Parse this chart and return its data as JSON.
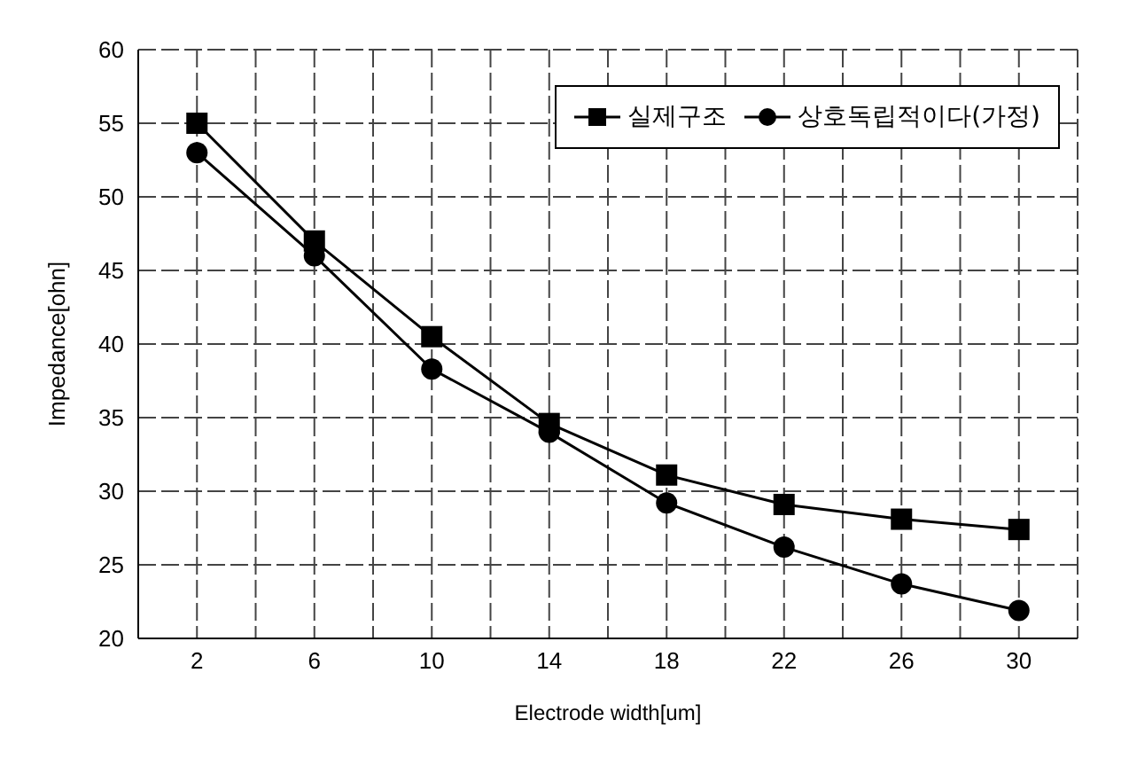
{
  "chart_data": {
    "type": "line",
    "xlabel": "Electrode width[um]",
    "ylabel": "Impedance[ohn]",
    "x": [
      2,
      6,
      10,
      14,
      18,
      22,
      26,
      30
    ],
    "series": [
      {
        "name": "실제구조",
        "color": "#000000",
        "marker": "square",
        "values": [
          55,
          47,
          40.5,
          34.6,
          31.1,
          29.1,
          28.1,
          27.4
        ]
      },
      {
        "name": "상호독립적이다(가정)",
        "color": "#000000",
        "marker": "circle",
        "values": [
          53,
          46,
          38.3,
          34,
          29.2,
          26.2,
          23.7,
          21.9
        ]
      }
    ],
    "xlim": [
      0,
      32
    ],
    "xticks": [
      {
        "value": 0,
        "label": null
      },
      2,
      {
        "value": 4,
        "label": null
      },
      6,
      {
        "value": 8,
        "label": null
      },
      10,
      {
        "value": 12,
        "label": null
      },
      14,
      {
        "value": 16,
        "label": null
      },
      18,
      {
        "value": 20,
        "label": null
      },
      22,
      {
        "value": 24,
        "label": null
      },
      26,
      {
        "value": 28,
        "label": null
      },
      30,
      {
        "value": 32,
        "label": null
      }
    ],
    "ylim": [
      20,
      60
    ],
    "yticks": [
      20,
      25,
      30,
      35,
      40,
      45,
      50,
      55,
      60
    ],
    "grid": true,
    "legend": "top right",
    "line_style": "solid"
  }
}
